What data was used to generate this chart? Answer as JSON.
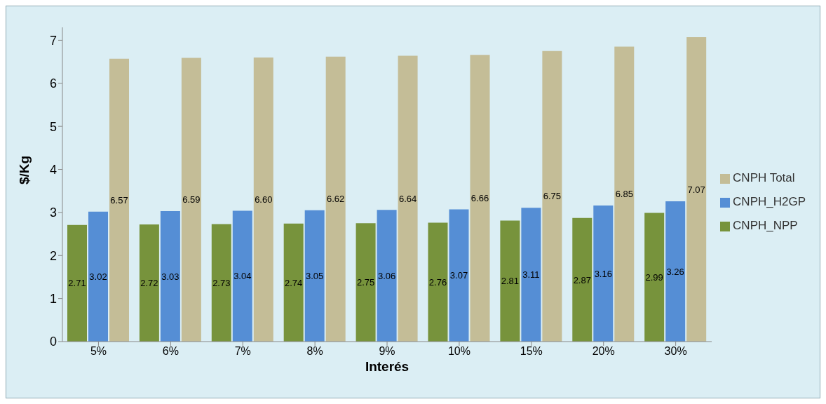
{
  "chart_data": {
    "type": "bar",
    "xlabel": "Interés",
    "ylabel": "$/Kg",
    "categories": [
      "5%",
      "6%",
      "7%",
      "8%",
      "9%",
      "10%",
      "15%",
      "20%",
      "30%"
    ],
    "series": [
      {
        "name": "CNPH_NPP",
        "color": "#77933c",
        "values": [
          2.71,
          2.72,
          2.73,
          2.74,
          2.75,
          2.76,
          2.81,
          2.87,
          2.99
        ]
      },
      {
        "name": "CNPH_H2GP",
        "color": "#558ed5",
        "values": [
          3.02,
          3.03,
          3.04,
          3.05,
          3.06,
          3.07,
          3.11,
          3.16,
          3.26
        ]
      },
      {
        "name": "CNPH Total",
        "color": "#c4bd97",
        "values": [
          6.57,
          6.59,
          6.6,
          6.62,
          6.64,
          6.66,
          6.75,
          6.85,
          7.07
        ],
        "value_labels": [
          "6.57",
          "6.59",
          "6.60",
          "6.62",
          "6.64",
          "6.66",
          "6.75",
          "6.85",
          "7.07"
        ]
      }
    ],
    "ylim": [
      0,
      7.3
    ],
    "yticks": [
      0,
      1,
      2,
      3,
      4,
      5,
      6,
      7
    ],
    "grid": false,
    "legend": "right",
    "data_labels": true
  }
}
